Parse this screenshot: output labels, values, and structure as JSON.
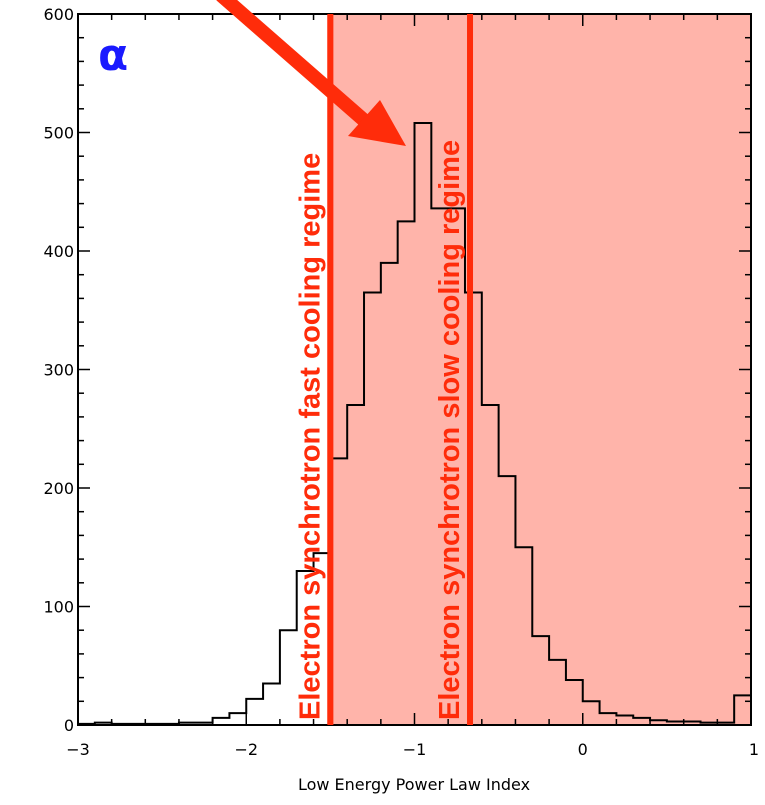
{
  "chart_data": {
    "type": "bar",
    "xlabel": "Low Energy Power Law Index",
    "ylabel": "",
    "xlim": [
      -3,
      1
    ],
    "ylim": [
      0,
      600
    ],
    "xticks": [
      "−3",
      "−2",
      "−1",
      "0",
      "1"
    ],
    "yticks": [
      "0",
      "100",
      "200",
      "300",
      "400",
      "500",
      "600"
    ],
    "bin_width": 0.1,
    "bins_start": [
      -3.0,
      -2.9,
      -2.8,
      -2.7,
      -2.6,
      -2.5,
      -2.4,
      -2.3,
      -2.2,
      -2.1,
      -2.0,
      -1.9,
      -1.8,
      -1.7,
      -1.6,
      -1.5,
      -1.4,
      -1.3,
      -1.2,
      -1.1,
      -1.0,
      -0.9,
      -0.8,
      -0.7,
      -0.6,
      -0.5,
      -0.4,
      -0.3,
      -0.2,
      -0.1,
      0.0,
      0.1,
      0.2,
      0.3,
      0.4,
      0.5,
      0.6,
      0.7,
      0.8,
      0.9
    ],
    "counts": [
      1,
      2,
      1,
      1,
      1,
      1,
      2,
      2,
      6,
      10,
      22,
      35,
      80,
      130,
      145,
      225,
      270,
      365,
      390,
      425,
      508,
      436,
      436,
      365,
      270,
      210,
      150,
      75,
      55,
      38,
      20,
      10,
      8,
      6,
      4,
      3,
      3,
      2,
      2,
      25
    ],
    "shaded_region": [
      -1.52,
      1
    ],
    "vertical_lines": [
      {
        "x": -1.5,
        "label": "Electron synchrotron fast cooling regime"
      },
      {
        "x": -0.67,
        "label": "Electron synchrotron slow cooling regime"
      }
    ],
    "panel_label": "α",
    "colors": {
      "shade": "#ffb4aa",
      "line": "#ff2c0a",
      "arrow": "#ff2c0a",
      "panel_label": "#1a1aff"
    }
  }
}
